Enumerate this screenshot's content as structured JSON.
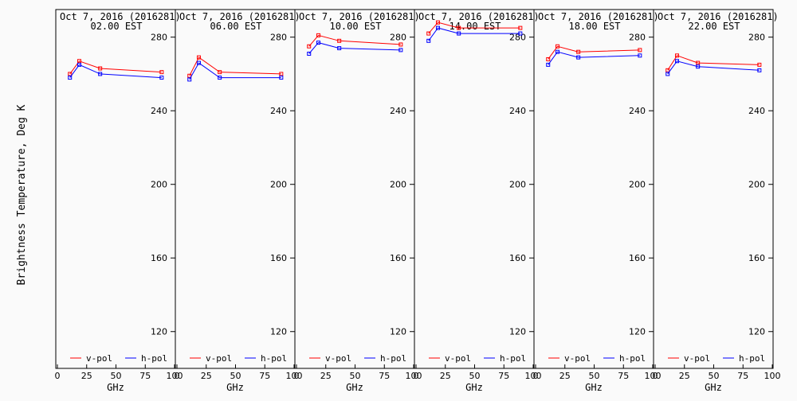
{
  "figure": {
    "ylabel": "Brightness Temperature, Deg K",
    "xlabel": "GHz"
  },
  "chart_data": [
    {
      "type": "line",
      "title_line1": "Oct  7, 2016 (2016281)",
      "title_line2": "02.00 EST",
      "xlabel": "GHz",
      "ylabel": "Brightness Temperature, Deg K",
      "xlim": [
        0,
        100
      ],
      "ylim": [
        100,
        295
      ],
      "xticks": [
        "0",
        "25",
        "50",
        "75",
        "100"
      ],
      "yticks": [
        "120",
        "160",
        "200",
        "240",
        "280"
      ],
      "x": [
        10.7,
        18.7,
        36.5,
        89.0
      ],
      "series": [
        {
          "name": "v-pol",
          "color": "#ff0000",
          "values": [
            260,
            267,
            263,
            261
          ]
        },
        {
          "name": "h-pol",
          "color": "#0000ff",
          "values": [
            258,
            265,
            260,
            258
          ]
        }
      ],
      "legend": "bottom"
    },
    {
      "type": "line",
      "title_line1": "Oct  7, 2016 (2016281)",
      "title_line2": "06.00 EST",
      "xlabel": "GHz",
      "xlim": [
        0,
        100
      ],
      "ylim": [
        100,
        295
      ],
      "xticks": [
        "0",
        "25",
        "50",
        "75",
        "100"
      ],
      "yticks": [
        "120",
        "160",
        "200",
        "240",
        "280"
      ],
      "x": [
        10.7,
        18.7,
        36.5,
        89.0
      ],
      "series": [
        {
          "name": "v-pol",
          "color": "#ff0000",
          "values": [
            259,
            269,
            261,
            260
          ]
        },
        {
          "name": "h-pol",
          "color": "#0000ff",
          "values": [
            257,
            266,
            258,
            258
          ]
        }
      ],
      "legend": "bottom"
    },
    {
      "type": "line",
      "title_line1": "Oct  7, 2016 (2016281)",
      "title_line2": "10.00 EST",
      "xlabel": "GHz",
      "xlim": [
        0,
        100
      ],
      "ylim": [
        100,
        295
      ],
      "xticks": [
        "0",
        "25",
        "50",
        "75",
        "100"
      ],
      "yticks": [
        "120",
        "160",
        "200",
        "240",
        "280"
      ],
      "x": [
        10.7,
        18.7,
        36.5,
        89.0
      ],
      "series": [
        {
          "name": "v-pol",
          "color": "#ff0000",
          "values": [
            275,
            281,
            278,
            276
          ]
        },
        {
          "name": "h-pol",
          "color": "#0000ff",
          "values": [
            271,
            277,
            274,
            273
          ]
        }
      ],
      "legend": "bottom"
    },
    {
      "type": "line",
      "title_line1": "Oct  7, 2016 (2016281)",
      "title_line2": "14.00 EST",
      "xlabel": "GHz",
      "xlim": [
        0,
        100
      ],
      "ylim": [
        100,
        295
      ],
      "xticks": [
        "0",
        "25",
        "50",
        "75",
        "100"
      ],
      "yticks": [
        "120",
        "160",
        "200",
        "240",
        "280"
      ],
      "x": [
        10.7,
        18.7,
        36.5,
        89.0
      ],
      "series": [
        {
          "name": "v-pol",
          "color": "#ff0000",
          "values": [
            282,
            288,
            285,
            285
          ]
        },
        {
          "name": "h-pol",
          "color": "#0000ff",
          "values": [
            278,
            285,
            282,
            282
          ]
        }
      ],
      "legend": "bottom"
    },
    {
      "type": "line",
      "title_line1": "Oct  7, 2016 (2016281)",
      "title_line2": "18.00 EST",
      "xlabel": "GHz",
      "xlim": [
        0,
        100
      ],
      "ylim": [
        100,
        295
      ],
      "xticks": [
        "0",
        "25",
        "50",
        "75",
        "100"
      ],
      "yticks": [
        "120",
        "160",
        "200",
        "240",
        "280"
      ],
      "x": [
        10.7,
        18.7,
        36.5,
        89.0
      ],
      "series": [
        {
          "name": "v-pol",
          "color": "#ff0000",
          "values": [
            268,
            275,
            272,
            273
          ]
        },
        {
          "name": "h-pol",
          "color": "#0000ff",
          "values": [
            265,
            272,
            269,
            270
          ]
        }
      ],
      "legend": "bottom"
    },
    {
      "type": "line",
      "title_line1": "Oct  7, 2016 (2016281)",
      "title_line2": "22.00 EST",
      "xlabel": "GHz",
      "xlim": [
        0,
        100
      ],
      "ylim": [
        100,
        295
      ],
      "xticks": [
        "0",
        "25",
        "50",
        "75",
        "100"
      ],
      "yticks": [
        "120",
        "160",
        "200",
        "240",
        "280"
      ],
      "x": [
        10.7,
        18.7,
        36.5,
        89.0
      ],
      "series": [
        {
          "name": "v-pol",
          "color": "#ff0000",
          "values": [
            262,
            270,
            266,
            265
          ]
        },
        {
          "name": "h-pol",
          "color": "#0000ff",
          "values": [
            260,
            267,
            264,
            262
          ]
        }
      ],
      "legend": "bottom"
    }
  ]
}
